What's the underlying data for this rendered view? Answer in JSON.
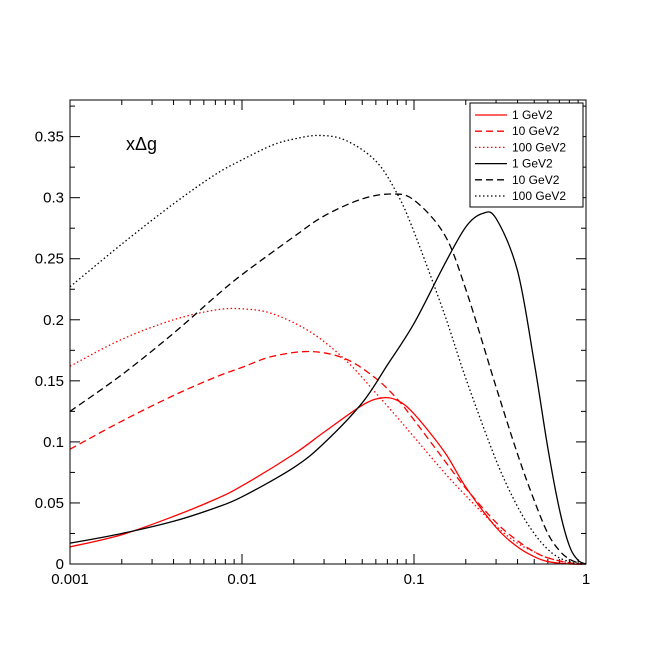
{
  "chart_data": {
    "type": "line",
    "annotation": "xΔg",
    "xscale": "log",
    "xlim": [
      0.001,
      1
    ],
    "ylim": [
      0,
      0.38
    ],
    "x_tick_labels": [
      "0.001",
      "0.01",
      "0.1",
      "1"
    ],
    "y_tick_labels": [
      "0",
      "0.05",
      "0.1",
      "0.15",
      "0.2",
      "0.25",
      "0.3",
      "0.35"
    ],
    "legend_position": "top-right",
    "grid": false,
    "series": [
      {
        "name": "1 GeV2",
        "color": "#ff0000",
        "dash": "solid",
        "x": [
          0.001,
          0.002,
          0.004,
          0.007,
          0.01,
          0.02,
          0.03,
          0.05,
          0.065,
          0.08,
          0.1,
          0.15,
          0.2,
          0.3,
          0.4,
          0.5,
          0.6,
          0.8,
          1.0
        ],
        "y": [
          0.014,
          0.024,
          0.039,
          0.053,
          0.064,
          0.09,
          0.108,
          0.13,
          0.136,
          0.134,
          0.123,
          0.092,
          0.063,
          0.03,
          0.014,
          0.006,
          0.002,
          0.0,
          0.0
        ]
      },
      {
        "name": "10 GeV2",
        "color": "#ff0000",
        "dash": "dashed",
        "x": [
          0.001,
          0.002,
          0.004,
          0.007,
          0.01,
          0.015,
          0.025,
          0.04,
          0.06,
          0.08,
          0.1,
          0.15,
          0.2,
          0.3,
          0.4,
          0.5,
          0.6,
          0.8,
          1.0
        ],
        "y": [
          0.094,
          0.117,
          0.138,
          0.153,
          0.161,
          0.17,
          0.174,
          0.168,
          0.152,
          0.135,
          0.118,
          0.085,
          0.062,
          0.034,
          0.019,
          0.01,
          0.005,
          0.001,
          0.0
        ]
      },
      {
        "name": "100 GeV2",
        "color": "#ff0000",
        "dash": "dotted",
        "x": [
          0.001,
          0.002,
          0.004,
          0.007,
          0.01,
          0.015,
          0.025,
          0.04,
          0.06,
          0.08,
          0.1,
          0.15,
          0.2,
          0.3,
          0.4,
          0.5,
          0.6,
          0.8,
          1.0
        ],
        "y": [
          0.162,
          0.184,
          0.2,
          0.208,
          0.209,
          0.205,
          0.19,
          0.167,
          0.14,
          0.12,
          0.104,
          0.075,
          0.056,
          0.031,
          0.017,
          0.01,
          0.005,
          0.001,
          0.0
        ]
      },
      {
        "name": "1 GeV2",
        "color": "#000000",
        "dash": "solid",
        "x": [
          0.001,
          0.002,
          0.004,
          0.007,
          0.01,
          0.02,
          0.03,
          0.05,
          0.07,
          0.1,
          0.15,
          0.2,
          0.25,
          0.3,
          0.4,
          0.5,
          0.6,
          0.7,
          0.8,
          0.9,
          1.0
        ],
        "y": [
          0.017,
          0.025,
          0.035,
          0.046,
          0.055,
          0.079,
          0.099,
          0.132,
          0.163,
          0.197,
          0.245,
          0.276,
          0.287,
          0.283,
          0.24,
          0.165,
          0.095,
          0.045,
          0.015,
          0.003,
          0.0
        ]
      },
      {
        "name": "10 GeV2",
        "color": "#000000",
        "dash": "dashed",
        "x": [
          0.001,
          0.002,
          0.004,
          0.007,
          0.01,
          0.02,
          0.03,
          0.05,
          0.075,
          0.1,
          0.15,
          0.2,
          0.3,
          0.4,
          0.5,
          0.6,
          0.7,
          0.8,
          0.9,
          1.0
        ],
        "y": [
          0.125,
          0.155,
          0.189,
          0.219,
          0.237,
          0.268,
          0.285,
          0.299,
          0.303,
          0.298,
          0.27,
          0.225,
          0.145,
          0.09,
          0.052,
          0.025,
          0.011,
          0.004,
          0.001,
          0.0
        ]
      },
      {
        "name": "100 GeV2",
        "color": "#000000",
        "dash": "dotted",
        "x": [
          0.001,
          0.002,
          0.004,
          0.007,
          0.01,
          0.015,
          0.02,
          0.028,
          0.04,
          0.06,
          0.08,
          0.1,
          0.15,
          0.2,
          0.3,
          0.4,
          0.5,
          0.6,
          0.7,
          0.8,
          0.9,
          1.0
        ],
        "y": [
          0.227,
          0.262,
          0.295,
          0.319,
          0.331,
          0.343,
          0.348,
          0.351,
          0.347,
          0.33,
          0.303,
          0.272,
          0.205,
          0.152,
          0.085,
          0.047,
          0.025,
          0.012,
          0.005,
          0.002,
          0.0,
          0.0
        ]
      }
    ]
  }
}
